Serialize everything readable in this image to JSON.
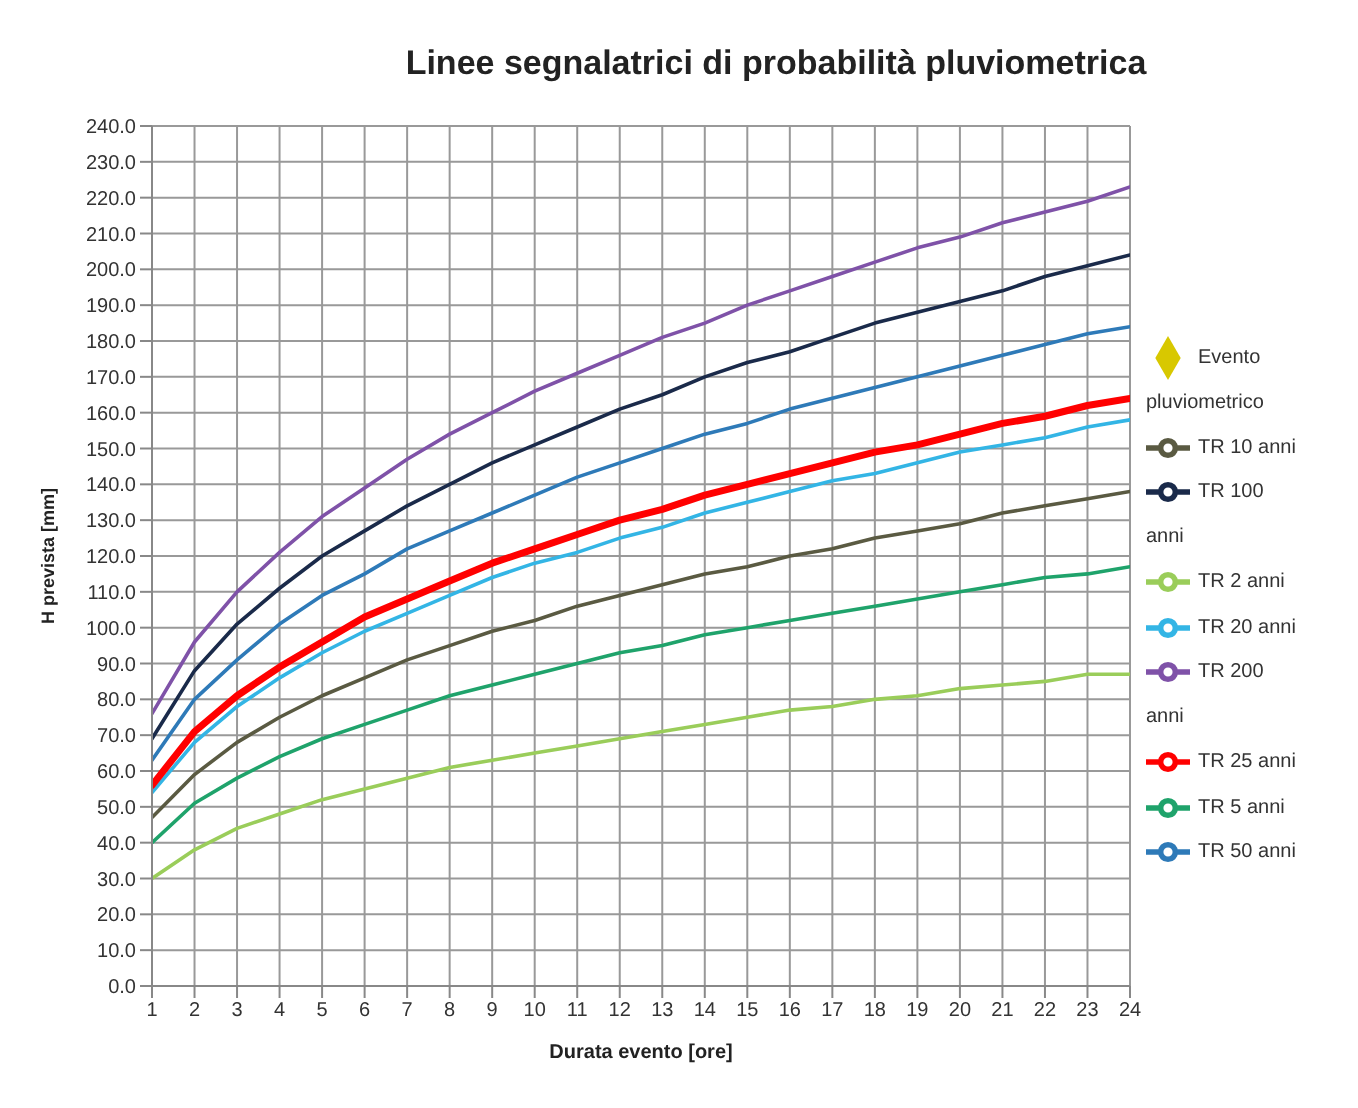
{
  "chart_data": {
    "type": "line",
    "title": "Linee segnalatrici di probabilità pluviometrica",
    "xlabel": "Durata evento [ore]",
    "ylabel": "H prevista [mm]",
    "x": [
      1,
      2,
      3,
      4,
      5,
      6,
      7,
      8,
      9,
      10,
      11,
      12,
      13,
      14,
      15,
      16,
      17,
      18,
      19,
      20,
      21,
      22,
      23,
      24
    ],
    "xlim": [
      1,
      24
    ],
    "xticks": [
      1,
      2,
      3,
      4,
      5,
      6,
      7,
      8,
      9,
      10,
      11,
      12,
      13,
      14,
      15,
      16,
      17,
      18,
      19,
      20,
      21,
      22,
      23,
      24
    ],
    "ylim": [
      0,
      240
    ],
    "yticks": [
      {
        "value": 0,
        "label": "0.0"
      },
      {
        "value": 10,
        "label": "10.0"
      },
      {
        "value": 20,
        "label": "20.0"
      },
      {
        "value": 30,
        "label": "30.0"
      },
      {
        "value": 40,
        "label": "40.0"
      },
      {
        "value": 50,
        "label": "50.0"
      },
      {
        "value": 60,
        "label": "60.0"
      },
      {
        "value": 70,
        "label": "70.0"
      },
      {
        "value": 80,
        "label": "80.0"
      },
      {
        "value": 90,
        "label": "90.0"
      },
      {
        "value": 100,
        "label": "100.0"
      },
      {
        "value": 110,
        "label": "110.0"
      },
      {
        "value": 120,
        "label": "120.0"
      },
      {
        "value": 130,
        "label": "130.0"
      },
      {
        "value": 140,
        "label": "140.0"
      },
      {
        "value": 150,
        "label": "150.0"
      },
      {
        "value": 160,
        "label": "160.0"
      },
      {
        "value": 170,
        "label": "170.0"
      },
      {
        "value": 180,
        "label": "180.0"
      },
      {
        "value": 190,
        "label": "190.0"
      },
      {
        "value": 200,
        "label": "200.0"
      },
      {
        "value": 210,
        "label": "210.0"
      },
      {
        "value": 220,
        "label": "220.0"
      },
      {
        "value": 230,
        "label": "230.0"
      },
      {
        "value": 240,
        "label": "240.0"
      }
    ],
    "grid": true,
    "legend": "right",
    "marker": "none",
    "line_style": "solid",
    "series": [
      {
        "name": "TR 200 anni",
        "color": "#7f52a8",
        "values": [
          76,
          96,
          110,
          121,
          131,
          139,
          147,
          154,
          160,
          166,
          171,
          176,
          181,
          185,
          190,
          194,
          198,
          202,
          206,
          209,
          213,
          216,
          219,
          223
        ]
      },
      {
        "name": "TR 100 anni",
        "color": "#1a2a4a",
        "values": [
          69,
          88,
          101,
          111,
          120,
          127,
          134,
          140,
          146,
          151,
          156,
          161,
          165,
          170,
          174,
          177,
          181,
          185,
          188,
          191,
          194,
          198,
          201,
          204
        ]
      },
      {
        "name": "TR 50 anni",
        "color": "#2e7ab8",
        "values": [
          63,
          80,
          91,
          101,
          109,
          115,
          122,
          127,
          132,
          137,
          142,
          146,
          150,
          154,
          157,
          161,
          164,
          167,
          170,
          173,
          176,
          179,
          182,
          184
        ]
      },
      {
        "name": "TR 20 anni",
        "color": "#33b5e5",
        "values": [
          54,
          68,
          78,
          86,
          93,
          99,
          104,
          109,
          114,
          118,
          121,
          125,
          128,
          132,
          135,
          138,
          141,
          143,
          146,
          149,
          151,
          153,
          156,
          158
        ]
      },
      {
        "name": "TR 10 anni",
        "color": "#5a5a42",
        "values": [
          47,
          59,
          68,
          75,
          81,
          86,
          91,
          95,
          99,
          102,
          106,
          109,
          112,
          115,
          117,
          120,
          122,
          125,
          127,
          129,
          132,
          134,
          136,
          138
        ]
      },
      {
        "name": "TR 5 anni",
        "color": "#1fa36b",
        "values": [
          40,
          51,
          58,
          64,
          69,
          73,
          77,
          81,
          84,
          87,
          90,
          93,
          95,
          98,
          100,
          102,
          104,
          106,
          108,
          110,
          112,
          114,
          115,
          117
        ]
      },
      {
        "name": "TR 2 anni",
        "color": "#9acd5a",
        "values": [
          30,
          38,
          44,
          48,
          52,
          55,
          58,
          61,
          63,
          65,
          67,
          69,
          71,
          73,
          75,
          77,
          78,
          80,
          81,
          83,
          84,
          85,
          87,
          87
        ]
      },
      {
        "name": "TR 25 anni",
        "color": "#ff0000",
        "values": [
          56,
          71,
          81,
          89,
          96,
          103,
          108,
          113,
          118,
          122,
          126,
          130,
          133,
          137,
          140,
          143,
          146,
          149,
          151,
          154,
          157,
          159,
          162,
          164
        ]
      },
      {
        "name": "Evento pluviometrico",
        "color": "#d8c800",
        "type": "scatter",
        "marker": "diamond",
        "values": [
          null,
          null,
          null,
          null,
          null,
          null,
          null,
          null,
          null,
          null,
          null,
          null,
          null,
          null,
          null,
          null,
          null,
          null,
          null,
          null,
          null,
          null,
          null,
          null
        ]
      }
    ]
  }
}
